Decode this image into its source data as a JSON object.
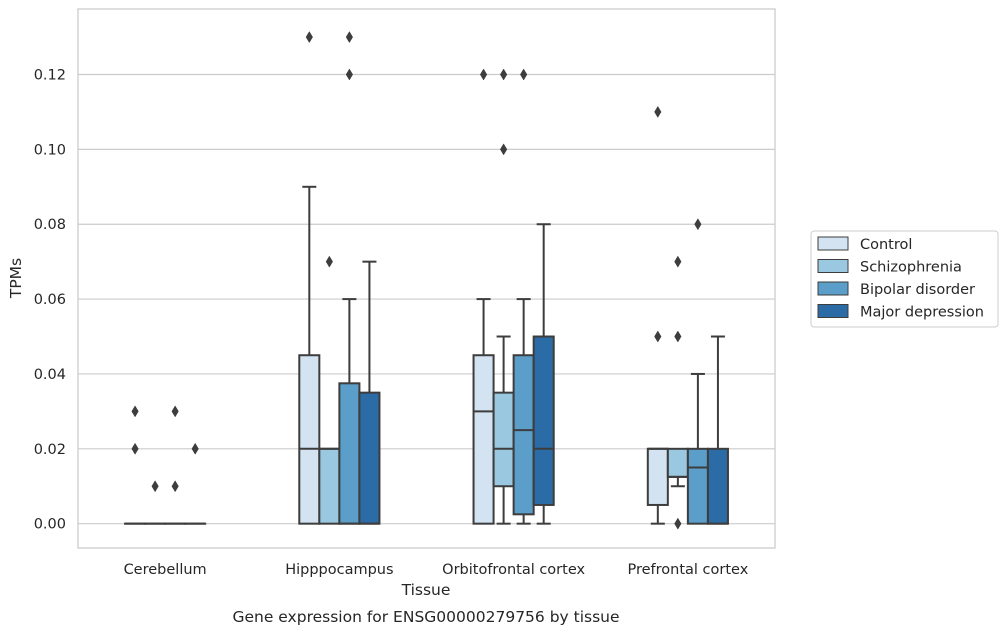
{
  "caption": "Gene expression for ENSG00000279756 by tissue",
  "chart_data": {
    "type": "boxplot",
    "title": "",
    "xlabel": "Tissue",
    "ylabel": "TPMs",
    "ylim": [
      -0.0065,
      0.1375
    ],
    "yticks": [
      0.0,
      0.02,
      0.04,
      0.06,
      0.08,
      0.1,
      0.12
    ],
    "ytick_labels": [
      "0.00",
      "0.02",
      "0.04",
      "0.06",
      "0.08",
      "0.10",
      "0.12"
    ],
    "categories": [
      "Cerebellum",
      "Hipppocampus",
      "Orbitofrontal cortex",
      "Prefrontal cortex"
    ],
    "grid": "horizontal",
    "legend_position": "right",
    "series": [
      {
        "name": "Control",
        "color": "#d3e3f1",
        "boxes": [
          {
            "whislo": 0,
            "q1": 0,
            "med": 0,
            "q3": 0,
            "whishi": 0,
            "fliers": [
              0.03,
              0.02
            ]
          },
          {
            "whislo": 0,
            "q1": 0,
            "med": 0.02,
            "q3": 0.045,
            "whishi": 0.09,
            "fliers": [
              0.13
            ]
          },
          {
            "whislo": 0,
            "q1": 0,
            "med": 0.03,
            "q3": 0.045,
            "whishi": 0.06,
            "fliers": [
              0.12
            ]
          },
          {
            "whislo": 0,
            "q1": 0.005,
            "med": 0.02,
            "q3": 0.02,
            "whishi": 0.02,
            "fliers": [
              0.05,
              0.11
            ]
          }
        ]
      },
      {
        "name": "Schizophrenia",
        "color": "#9ac8e0",
        "boxes": [
          {
            "whislo": 0,
            "q1": 0,
            "med": 0,
            "q3": 0,
            "whishi": 0,
            "fliers": [
              0.01
            ]
          },
          {
            "whislo": 0,
            "q1": 0,
            "med": 0.02,
            "q3": 0.02,
            "whishi": 0.02,
            "fliers": [
              0.07
            ]
          },
          {
            "whislo": 0,
            "q1": 0.01,
            "med": 0.02,
            "q3": 0.035,
            "whishi": 0.05,
            "fliers": [
              0.12,
              0.1
            ]
          },
          {
            "whislo": 0.01,
            "q1": 0.0125,
            "med": 0.0125,
            "q3": 0.02,
            "whishi": 0.02,
            "fliers": [
              0.07,
              0.05,
              0
            ]
          }
        ]
      },
      {
        "name": "Bipolar disorder",
        "color": "#5a9ec9",
        "boxes": [
          {
            "whislo": 0,
            "q1": 0,
            "med": 0,
            "q3": 0,
            "whishi": 0,
            "fliers": [
              0.03,
              0.01
            ]
          },
          {
            "whislo": 0,
            "q1": 0,
            "med": 0,
            "q3": 0.0375,
            "whishi": 0.06,
            "fliers": [
              0.13,
              0.12
            ]
          },
          {
            "whislo": 0,
            "q1": 0.0025,
            "med": 0.025,
            "q3": 0.045,
            "whishi": 0.06,
            "fliers": [
              0.12
            ]
          },
          {
            "whislo": 0,
            "q1": 0,
            "med": 0.015,
            "q3": 0.02,
            "whishi": 0.04,
            "fliers": [
              0.08
            ]
          }
        ]
      },
      {
        "name": "Major depression",
        "color": "#2b6ca6",
        "boxes": [
          {
            "whislo": 0,
            "q1": 0,
            "med": 0,
            "q3": 0,
            "whishi": 0,
            "fliers": [
              0.02
            ]
          },
          {
            "whislo": 0,
            "q1": 0,
            "med": 0,
            "q3": 0.035,
            "whishi": 0.07,
            "fliers": []
          },
          {
            "whislo": 0,
            "q1": 0.005,
            "med": 0.02,
            "q3": 0.05,
            "whishi": 0.08,
            "fliers": []
          },
          {
            "whislo": 0,
            "q1": 0,
            "med": 0,
            "q3": 0.02,
            "whishi": 0.05,
            "fliers": []
          }
        ]
      }
    ]
  }
}
